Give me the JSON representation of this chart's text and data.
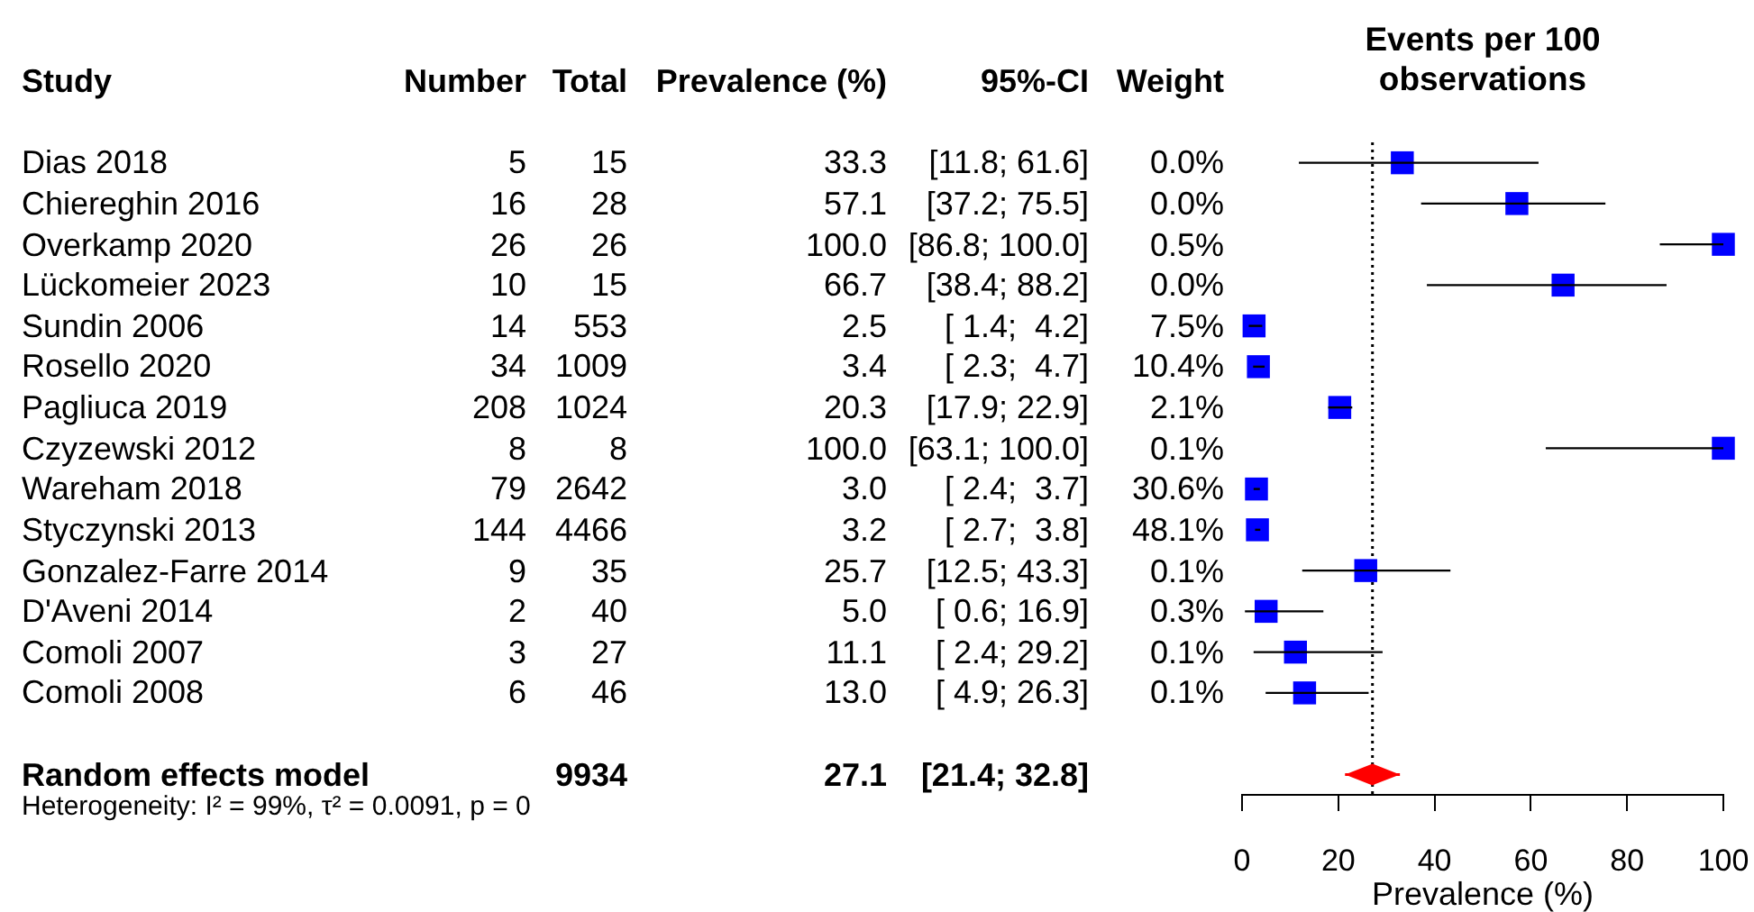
{
  "chart_data": [
    {
      "type": "other",
      "categories": [
        "Study",
        "Number",
        "Total",
        "Prevalence (%)",
        "95%-CI",
        "Weight"
      ],
      "cell_labels": [
        [
          "Dias 2018",
          "5",
          "15",
          "33.3",
          "[11.8; 61.6]",
          "0.0%"
        ],
        [
          "Chiereghin 2016",
          "16",
          "28",
          "57.1",
          "[37.2; 75.5]",
          "0.0%"
        ],
        [
          "Overkamp 2020",
          "26",
          "26",
          "100.0",
          "[86.8; 100.0]",
          "0.5%"
        ],
        [
          "Lückomeier 2023",
          "10",
          "15",
          "66.7",
          "[38.4; 88.2]",
          "0.0%"
        ],
        [
          "Sundin 2006",
          "14",
          "553",
          "2.5",
          "[ 1.4;  4.2]",
          "7.5%"
        ],
        [
          "Rosello 2020",
          "34",
          "1009",
          "3.4",
          "[ 2.3;  4.7]",
          "10.4%"
        ],
        [
          "Pagliuca 2019",
          "208",
          "1024",
          "20.3",
          "[17.9; 22.9]",
          "2.1%"
        ],
        [
          "Czyzewski 2012",
          "8",
          "8",
          "100.0",
          "[63.1; 100.0]",
          "0.1%"
        ],
        [
          "Wareham 2018",
          "79",
          "2642",
          "3.0",
          "[ 2.4;  3.7]",
          "30.6%"
        ],
        [
          "Styczynski 2013",
          "144",
          "4466",
          "3.2",
          "[ 2.7;  3.8]",
          "48.1%"
        ],
        [
          "Gonzalez-Farre 2014",
          "9",
          "35",
          "25.7",
          "[12.5; 43.3]",
          "0.1%"
        ],
        [
          "D'Aveni 2014",
          "2",
          "40",
          "5.0",
          "[ 0.6; 16.9]",
          "0.3%"
        ],
        [
          "Comoli 2007",
          "3",
          "27",
          "11.1",
          "[ 2.4; 29.2]",
          "0.1%"
        ],
        [
          "Comoli 2008",
          "6",
          "46",
          "13.0",
          "[ 4.9; 26.3]",
          "0.1%"
        ],
        [
          null,
          null,
          null,
          null,
          null,
          null
        ],
        [
          "Random effects model",
          null,
          "9934",
          "27.1",
          "[21.4; 32.8]",
          null
        ]
      ],
      "annotations": [
        "Heterogeneity: I² = 99%, τ² = 0.0091, p = 0"
      ]
    },
    {
      "type": "scatter",
      "orientation": "horizontal",
      "title": "Events per 100 observations",
      "xlabel": "Prevalence (%)",
      "categories": [
        null,
        null,
        null,
        null,
        null,
        null,
        null,
        null,
        null,
        null,
        null,
        null,
        null,
        null,
        null,
        null
      ],
      "xlim": [
        0,
        100
      ],
      "xticks": [
        0,
        20,
        40,
        60,
        80,
        100
      ],
      "legend": false,
      "ref_lines": [
        {
          "axis": "x",
          "value": 27.1,
          "color": "#000000",
          "line_style": "dotted"
        }
      ],
      "series": [
        {
          "color": "#0000ff",
          "marker": "square",
          "values": [
            33.3,
            57.1,
            100,
            66.7,
            2.5,
            3.4,
            20.3,
            100,
            3.0,
            3.2,
            25.7,
            5.0,
            11.1,
            13.0,
            null,
            null
          ],
          "errors": [
            [
              11.8,
              61.6
            ],
            [
              37.2,
              75.5
            ],
            [
              86.8,
              100
            ],
            [
              38.4,
              88.2
            ],
            [
              1.4,
              4.2
            ],
            [
              2.3,
              4.7
            ],
            [
              17.9,
              22.9
            ],
            [
              63.1,
              100
            ],
            [
              2.4,
              3.7
            ],
            [
              2.7,
              3.8
            ],
            [
              12.5,
              43.3
            ],
            [
              0.6,
              16.9
            ],
            [
              2.4,
              29.2
            ],
            [
              4.9,
              26.3
            ],
            null,
            null
          ]
        },
        {
          "color": "#ff0000",
          "marker": "diamond",
          "values": [
            null,
            null,
            null,
            null,
            null,
            null,
            null,
            null,
            null,
            null,
            null,
            null,
            null,
            null,
            null,
            27.1
          ],
          "errors": [
            null,
            null,
            null,
            null,
            null,
            null,
            null,
            null,
            null,
            null,
            null,
            null,
            null,
            null,
            null,
            [
              21.4,
              32.8
            ]
          ]
        }
      ]
    }
  ]
}
